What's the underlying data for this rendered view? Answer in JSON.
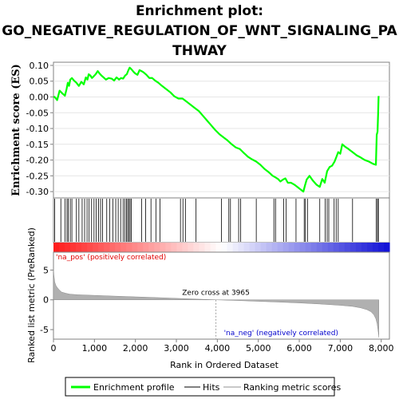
{
  "title_lines": [
    "Enrichment plot:",
    "GO_NEGATIVE_REGULATION_OF_WNT_SIGNALING_PA",
    "THWAY"
  ],
  "chart_data": {
    "type": "line",
    "es_panel": {
      "ylabel": "Enrichment score (ES)",
      "ylim": [
        -0.32,
        0.11
      ],
      "yticks": [
        0.1,
        0.05,
        0.0,
        -0.05,
        -0.1,
        -0.15,
        -0.2,
        -0.25,
        -0.3
      ],
      "ytick_labels": [
        "0.10",
        "0.05",
        "0.00",
        "-0.05",
        "-0.10",
        "-0.15",
        "-0.20",
        "-0.25",
        "-0.30"
      ],
      "line_color": "#00ff00",
      "series": [
        {
          "name": "Enrichment profile",
          "x": [
            0,
            30,
            90,
            150,
            210,
            280,
            320,
            350,
            380,
            410,
            450,
            500,
            560,
            620,
            680,
            740,
            790,
            830,
            860,
            900,
            940,
            980,
            1030,
            1080,
            1120,
            1170,
            1220,
            1280,
            1350,
            1420,
            1480,
            1540,
            1600,
            1650,
            1700,
            1750,
            1790,
            1830,
            1860,
            1900,
            1940,
            1990,
            2050,
            2100,
            2150,
            2200,
            2270,
            2340,
            2410,
            2480,
            2560,
            2650,
            2750,
            2850,
            2950,
            3050,
            3150,
            3250,
            3350,
            3450,
            3550,
            3650,
            3750,
            3850,
            3950,
            4050,
            4150,
            4250,
            4350,
            4450,
            4550,
            4650,
            4750,
            4850,
            4950,
            5050,
            5150,
            5250,
            5350,
            5420,
            5480,
            5540,
            5600,
            5660,
            5720,
            5800,
            5880,
            5950,
            6030,
            6100,
            6140,
            6180,
            6250,
            6330,
            6420,
            6500,
            6560,
            6620,
            6680,
            6740,
            6800,
            6860,
            6900,
            6950,
            7000,
            7050,
            7120,
            7200,
            7300,
            7400,
            7500,
            7600,
            7700,
            7800,
            7870,
            7890,
            7910,
            7925,
            7935,
            7940
          ],
          "y": [
            0.0,
            0.0,
            -0.01,
            0.02,
            0.012,
            0.004,
            0.025,
            0.045,
            0.035,
            0.055,
            0.06,
            0.052,
            0.045,
            0.035,
            0.048,
            0.04,
            0.062,
            0.055,
            0.072,
            0.068,
            0.06,
            0.065,
            0.072,
            0.082,
            0.075,
            0.068,
            0.062,
            0.055,
            0.06,
            0.058,
            0.052,
            0.062,
            0.055,
            0.06,
            0.058,
            0.068,
            0.072,
            0.085,
            0.093,
            0.088,
            0.082,
            0.075,
            0.07,
            0.085,
            0.082,
            0.078,
            0.07,
            0.06,
            0.06,
            0.052,
            0.045,
            0.035,
            0.025,
            0.015,
            0.002,
            -0.005,
            -0.005,
            -0.015,
            -0.025,
            -0.035,
            -0.045,
            -0.06,
            -0.075,
            -0.09,
            -0.105,
            -0.118,
            -0.128,
            -0.138,
            -0.15,
            -0.16,
            -0.165,
            -0.178,
            -0.19,
            -0.198,
            -0.205,
            -0.215,
            -0.228,
            -0.238,
            -0.25,
            -0.255,
            -0.26,
            -0.268,
            -0.262,
            -0.258,
            -0.272,
            -0.272,
            -0.278,
            -0.285,
            -0.293,
            -0.3,
            -0.28,
            -0.262,
            -0.25,
            -0.265,
            -0.278,
            -0.285,
            -0.26,
            -0.272,
            -0.235,
            -0.222,
            -0.218,
            -0.205,
            -0.192,
            -0.175,
            -0.18,
            -0.15,
            -0.158,
            -0.165,
            -0.175,
            -0.185,
            -0.192,
            -0.2,
            -0.205,
            -0.212,
            -0.215,
            -0.12,
            -0.11,
            -0.05,
            0.0,
            0.003
          ]
        }
      ]
    },
    "hits_panel": {
      "positions": [
        30,
        180,
        280,
        330,
        360,
        410,
        450,
        560,
        620,
        700,
        760,
        820,
        870,
        930,
        990,
        1040,
        1100,
        1150,
        1200,
        1300,
        1370,
        1450,
        1520,
        1580,
        1640,
        1700,
        1740,
        1780,
        1810,
        1840,
        1870,
        1900,
        2150,
        2250,
        2380,
        2500,
        2600,
        3100,
        3160,
        3220,
        3480,
        4100,
        4280,
        4320,
        4520,
        4570,
        4950,
        5380,
        5420,
        5620,
        5680,
        5920,
        6120,
        6150,
        6200,
        6500,
        6630,
        6680,
        6720,
        6850,
        6900,
        6950,
        7300,
        7880,
        7910,
        7930
      ]
    },
    "metric_panel": {
      "ylabel": "Ranked list metric (PreRanked)",
      "ylim": [
        -6.6,
        8.0
      ],
      "yticks": [
        5,
        0,
        -5
      ],
      "ytick_labels": [
        "5",
        "0",
        "-5"
      ],
      "fill_color": "#b0b0b0",
      "profile_x": [
        0,
        10,
        30,
        60,
        100,
        150,
        200,
        300,
        400,
        600,
        1000,
        1500,
        2000,
        2500,
        3000,
        3500,
        3965,
        4500,
        5000,
        5500,
        6000,
        6500,
        7000,
        7300,
        7500,
        7650,
        7750,
        7820,
        7870,
        7900,
        7920,
        7935,
        7942
      ],
      "profile_y": [
        5.2,
        4.2,
        3.0,
        2.4,
        2.0,
        1.6,
        1.3,
        1.1,
        0.95,
        0.85,
        0.75,
        0.62,
        0.5,
        0.38,
        0.25,
        0.12,
        0.0,
        -0.12,
        -0.25,
        -0.38,
        -0.52,
        -0.7,
        -0.92,
        -1.1,
        -1.35,
        -1.65,
        -2.0,
        -2.5,
        -3.2,
        -4.0,
        -5.0,
        -5.8,
        -6.3
      ],
      "zero_cross_label": "Zero cross at 3965",
      "zero_cross_x": 3965,
      "pos_label": "'na_pos' (positively correlated)",
      "neg_label": "'na_neg' (negatively correlated)"
    },
    "xaxis": {
      "label": "Rank in Ordered Dataset",
      "xlim": [
        0,
        8200
      ],
      "ticks": [
        0,
        1000,
        2000,
        3000,
        4000,
        5000,
        6000,
        7000,
        8000
      ],
      "tick_labels": [
        "0",
        "1,000",
        "2,000",
        "3,000",
        "4,000",
        "5,000",
        "6,000",
        "7,000",
        "8,000"
      ]
    },
    "legend": {
      "position": "bottom",
      "entries": [
        {
          "label": "Enrichment profile",
          "color": "#00ff00"
        },
        {
          "label": "Hits",
          "color": "#808080"
        },
        {
          "label": "Ranking metric scores",
          "color": "#c8c8c8"
        }
      ]
    }
  }
}
